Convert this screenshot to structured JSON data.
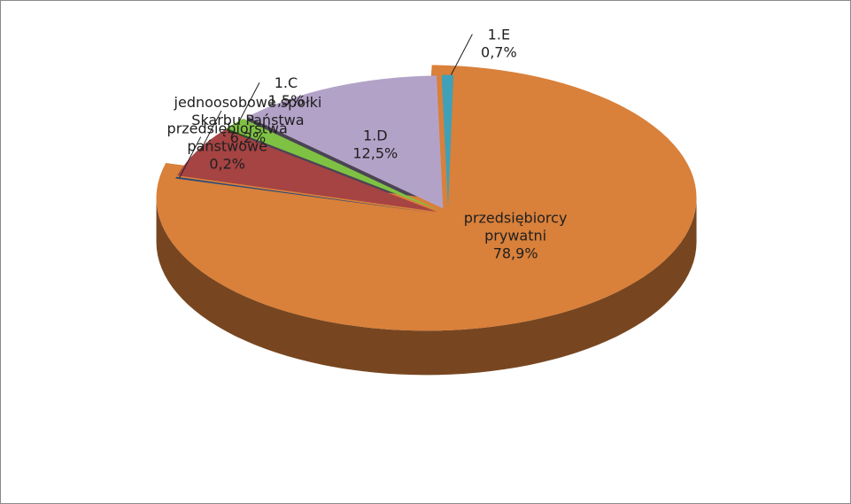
{
  "chart_data": {
    "type": "pie",
    "style": "3d-exploded",
    "title": "",
    "legend": "none",
    "slices": [
      {
        "label_lines": [
          "przedsiębiorcy",
          "prywatni"
        ],
        "value": 78.9,
        "value_label": "78,9%",
        "color": "#d9803a"
      },
      {
        "label_lines": [
          "przedsiębiorstwa",
          "państwowe"
        ],
        "value": 0.2,
        "value_label": "0,2%",
        "color": "#2a4a78"
      },
      {
        "label_lines": [
          "jednoosobowe spółki",
          "Skarbu Państwa"
        ],
        "value": 6.2,
        "value_label": "6,2%",
        "color": "#a64343"
      },
      {
        "label_lines": [
          "1.C"
        ],
        "value": 1.5,
        "value_label": "1,5%",
        "color": "#7fc243"
      },
      {
        "label_lines": [
          "1.D"
        ],
        "value": 12.5,
        "value_label": "12,5%",
        "color": "#b3a2c8"
      },
      {
        "label_lines": [
          "1.E"
        ],
        "value": 0.7,
        "value_label": "0,7%",
        "color": "#3fa0b8"
      }
    ]
  }
}
